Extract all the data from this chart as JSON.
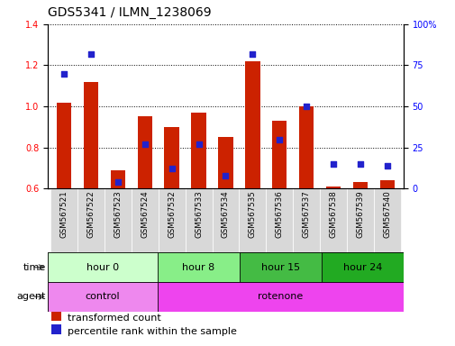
{
  "title": "GDS5341 / ILMN_1238069",
  "samples": [
    "GSM567521",
    "GSM567522",
    "GSM567523",
    "GSM567524",
    "GSM567532",
    "GSM567533",
    "GSM567534",
    "GSM567535",
    "GSM567536",
    "GSM567537",
    "GSM567538",
    "GSM567539",
    "GSM567540"
  ],
  "transformed_count": [
    1.02,
    1.12,
    0.69,
    0.95,
    0.9,
    0.97,
    0.85,
    1.22,
    0.93,
    1.0,
    0.61,
    0.63,
    0.64
  ],
  "percentile_rank": [
    70,
    82,
    4,
    27,
    12,
    27,
    8,
    82,
    30,
    50,
    15,
    15,
    14
  ],
  "ylim_left": [
    0.6,
    1.4
  ],
  "ylim_right": [
    0,
    100
  ],
  "yticks_left": [
    0.6,
    0.8,
    1.0,
    1.2,
    1.4
  ],
  "yticks_right": [
    0,
    25,
    50,
    75,
    100
  ],
  "bar_color": "#cc2200",
  "dot_color": "#2222cc",
  "time_colors": [
    "#ccffcc",
    "#88ee88",
    "#44bb44",
    "#22aa22"
  ],
  "time_groups": [
    {
      "label": "hour 0",
      "start": 0,
      "end": 4
    },
    {
      "label": "hour 8",
      "start": 4,
      "end": 7
    },
    {
      "label": "hour 15",
      "start": 7,
      "end": 10
    },
    {
      "label": "hour 24",
      "start": 10,
      "end": 13
    }
  ],
  "agent_colors": [
    "#ee88ee",
    "#ee44ee"
  ],
  "agent_groups": [
    {
      "label": "control",
      "start": 0,
      "end": 4
    },
    {
      "label": "rotenone",
      "start": 4,
      "end": 13
    }
  ],
  "legend_items": [
    {
      "label": "transformed count",
      "color": "#cc2200"
    },
    {
      "label": "percentile rank within the sample",
      "color": "#2222cc"
    }
  ],
  "background_color": "#ffffff",
  "plot_bg": "#ffffff",
  "title_fontsize": 10,
  "tick_fontsize": 7,
  "row_fontsize": 8,
  "legend_fontsize": 8
}
